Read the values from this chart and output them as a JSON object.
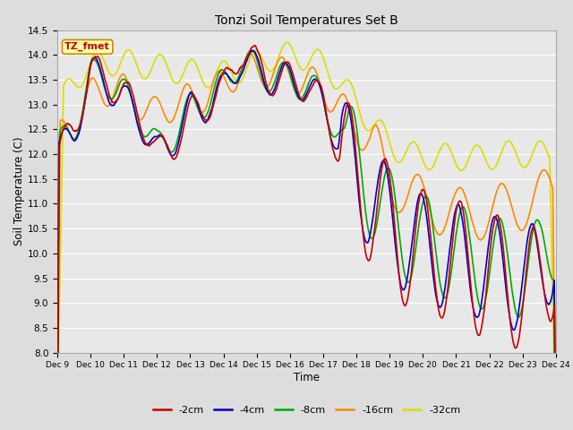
{
  "title": "Tonzi Soil Temperatures Set B",
  "xlabel": "Time",
  "ylabel": "Soil Temperature (C)",
  "ylim": [
    8.0,
    14.5
  ],
  "xlim": [
    0,
    15
  ],
  "x_tick_labels": [
    "Dec 9",
    "Dec 10",
    "Dec 11",
    "Dec 12",
    "Dec 13",
    "Dec 14",
    "Dec 15",
    "Dec 16",
    "Dec 17",
    "Dec 18",
    "Dec 19",
    "Dec 20",
    "Dec 21",
    "Dec 22",
    "Dec 23",
    "Dec 24"
  ],
  "series_colors": [
    "#cc0000",
    "#0000cc",
    "#00aa00",
    "#ff8800",
    "#dddd00"
  ],
  "series_labels": [
    "-2cm",
    "-4cm",
    "-8cm",
    "-16cm",
    "-32cm"
  ],
  "fig_bg_color": "#dddddd",
  "plot_bg_color": "#e8e8e8",
  "annotation_text": "TZ_fmet",
  "annotation_bg": "#ffffaa",
  "annotation_border": "#cc8800",
  "grid_color": "#ffffff"
}
